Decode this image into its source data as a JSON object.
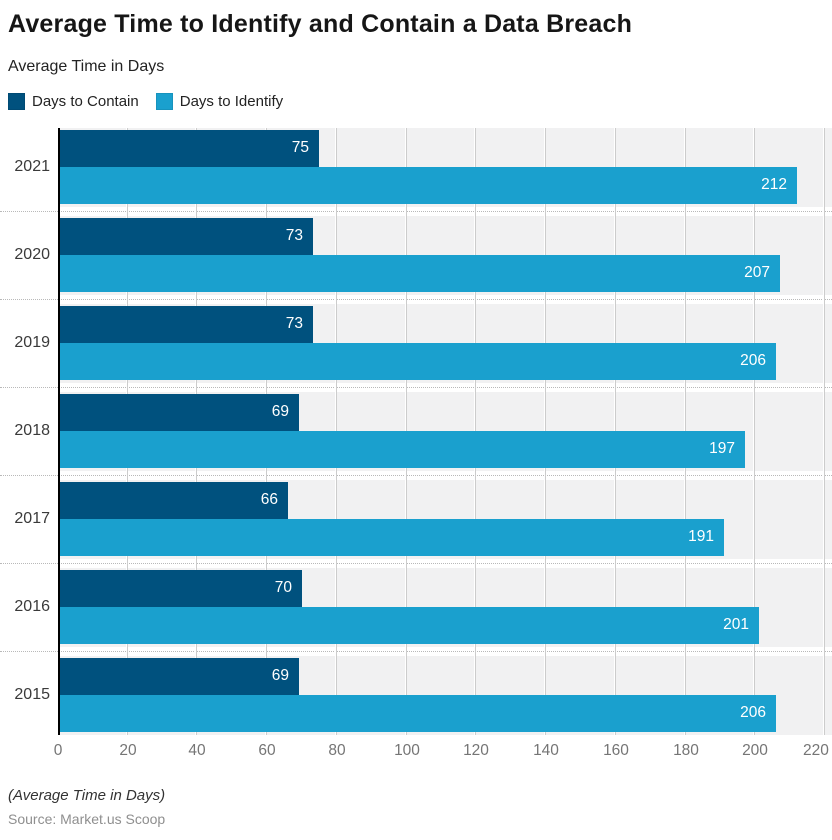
{
  "header": {
    "title": "Average Time to Identify and Contain a Data Breach",
    "subtitle": "Average Time in Days"
  },
  "legend": {
    "items": [
      {
        "label": "Days to Contain",
        "color": "#00517e"
      },
      {
        "label": "Days to Identify",
        "color": "#1aa0ce"
      }
    ]
  },
  "chart_data": {
    "type": "bar",
    "orientation": "horizontal",
    "title": "Average Time to Identify and Contain a Data Breach",
    "subtitle": "Average Time in Days",
    "categories": [
      "2021",
      "2020",
      "2019",
      "2018",
      "2017",
      "2016",
      "2015"
    ],
    "series": [
      {
        "name": "Days to Contain",
        "color": "#00517e",
        "values": [
          75,
          73,
          73,
          69,
          66,
          70,
          69
        ]
      },
      {
        "name": "Days to Identify",
        "color": "#1aa0ce",
        "values": [
          212,
          207,
          206,
          197,
          191,
          201,
          206
        ]
      }
    ],
    "xlim": [
      0,
      220
    ],
    "xticks": [
      0,
      20,
      40,
      60,
      80,
      100,
      120,
      140,
      160,
      180,
      200,
      220
    ],
    "grid": true,
    "legend_position": "top-left",
    "band_bg": "#f1f1f2",
    "axis_color": "#000000"
  },
  "footer": {
    "note": "(Average Time in Days)",
    "source": "Source: Market.us Scoop"
  }
}
